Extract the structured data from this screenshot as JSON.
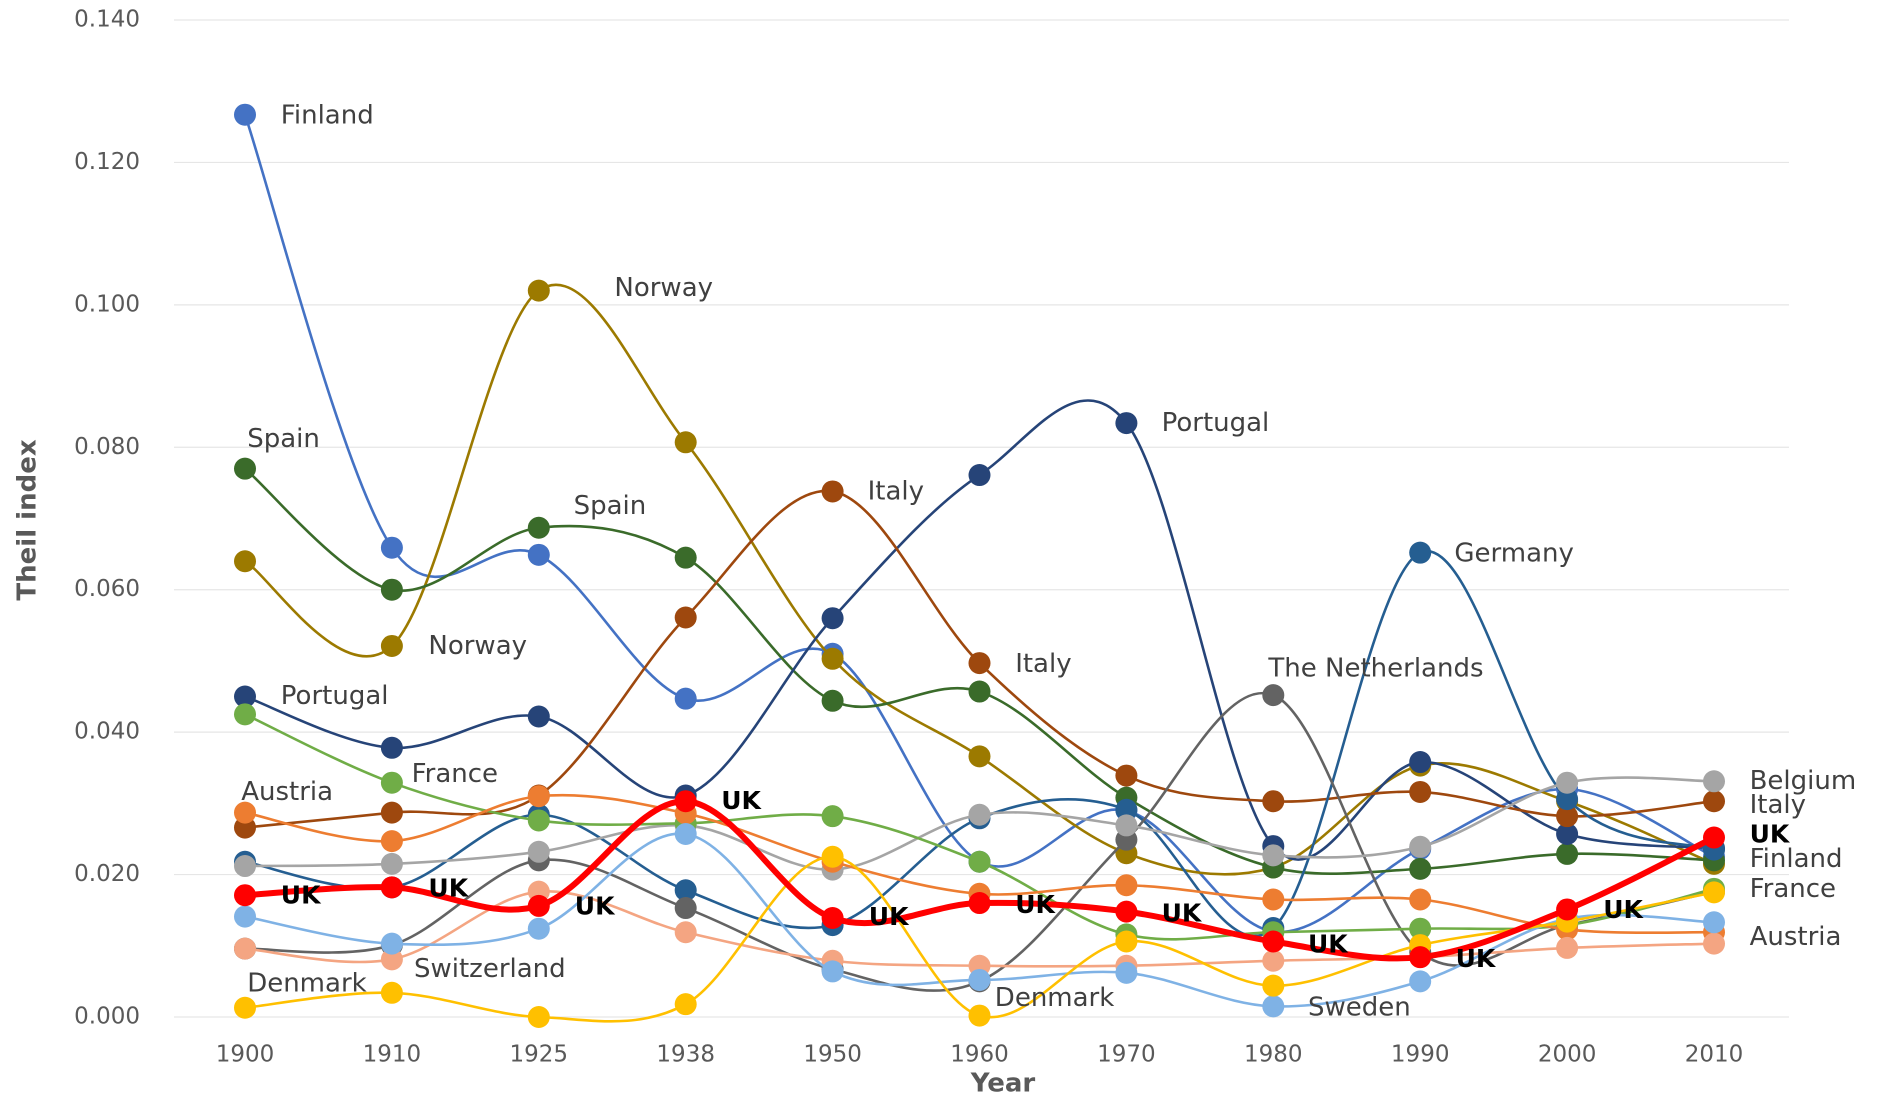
{
  "chart_data": {
    "type": "line",
    "x_label": "Year",
    "y_label": "Theil index",
    "categories": [
      "1900",
      "1910",
      "1925",
      "1938",
      "1950",
      "1960",
      "1970",
      "1980",
      "1990",
      "2000",
      "2010"
    ],
    "ylim": [
      0,
      0.14
    ],
    "yticks": [
      {
        "value": 0,
        "label": "0.000"
      },
      {
        "value": 0.02,
        "label": "0.020"
      },
      {
        "value": 0.04,
        "label": "0.040"
      },
      {
        "value": 0.06,
        "label": "0.060"
      },
      {
        "value": 0.08,
        "label": "0.080"
      },
      {
        "value": 0.1,
        "label": "0.100"
      },
      {
        "value": 0.12,
        "label": "0.120"
      },
      {
        "value": 0.14,
        "label": "0.140"
      }
    ],
    "grid": true,
    "series": [
      {
        "name": "Finland",
        "color": "#4472c4",
        "values": [
          0.1267,
          0.0659,
          0.0649,
          0.0447,
          0.051,
          0.0218,
          0.029,
          0.012,
          0.0236,
          0.032,
          0.0225
        ]
      },
      {
        "name": "Norway",
        "color": "#9c7a00",
        "values": [
          0.064,
          0.0521,
          0.102,
          0.0807,
          0.0503,
          0.0366,
          0.023,
          0.021,
          0.0353,
          0.0303,
          0.0215
        ]
      },
      {
        "name": "Spain",
        "color": "#3a6b2a",
        "values": [
          0.077,
          0.06,
          0.0687,
          0.0645,
          0.0444,
          0.0457,
          0.0308,
          0.021,
          0.0208,
          0.0229,
          0.022
        ]
      },
      {
        "name": "Portugal",
        "color": "#264478",
        "values": [
          0.045,
          0.0378,
          0.0422,
          0.0311,
          0.056,
          0.0761,
          0.0834,
          0.024,
          0.0358,
          0.0257,
          0.0237
        ]
      },
      {
        "name": "Italy",
        "color": "#9e480e",
        "values": [
          0.0266,
          0.0287,
          0.0311,
          0.0561,
          0.0738,
          0.0497,
          0.0339,
          0.0303,
          0.0316,
          0.0282,
          0.0303
        ]
      },
      {
        "name": "Germany",
        "color": "#255e91",
        "values": [
          0.0218,
          0.0182,
          0.0284,
          0.0178,
          0.0129,
          0.0279,
          0.0291,
          0.0125,
          0.0652,
          0.0306,
          0.0235
        ]
      },
      {
        "name": "The Netherlands",
        "color": "#636363",
        "values": [
          0.0096,
          0.0101,
          0.022,
          0.0153,
          0.0067,
          0.005,
          0.0249,
          0.0452,
          0.0091,
          0.0129,
          0.0176
        ]
      },
      {
        "name": "Belgium",
        "color": "#a5a5a5",
        "values": [
          0.0212,
          0.0215,
          0.0232,
          0.0269,
          0.0207,
          0.0284,
          0.0269,
          0.0227,
          0.0239,
          0.0329,
          0.0331
        ]
      },
      {
        "name": "France",
        "color": "#70ad47",
        "values": [
          0.0425,
          0.0329,
          0.0276,
          0.0272,
          0.0282,
          0.0218,
          0.0116,
          0.0119,
          0.0124,
          0.0129,
          0.018
        ]
      },
      {
        "name": "Austria",
        "color": "#ed7d31",
        "values": [
          0.0287,
          0.0247,
          0.031,
          0.0286,
          0.0218,
          0.0173,
          0.0185,
          0.0165,
          0.0165,
          0.0123,
          0.0119
        ]
      },
      {
        "name": "Switzerland",
        "color": "#f4a582",
        "values": [
          0.0096,
          0.0081,
          0.0176,
          0.0119,
          0.0079,
          0.0072,
          0.0072,
          0.0079,
          0.0084,
          0.0097,
          0.0103
        ]
      },
      {
        "name": "Sweden",
        "color": "#7fb2e5",
        "values": [
          0.0141,
          0.0103,
          0.0124,
          0.0257,
          0.0064,
          0.0052,
          0.0062,
          0.0015,
          0.005,
          0.0138,
          0.0133
        ]
      },
      {
        "name": "Denmark",
        "color": "#ffc000",
        "values": [
          0.0013,
          0.0034,
          0.0,
          0.0018,
          0.0225,
          0.0002,
          0.0106,
          0.0044,
          0.0101,
          0.0134,
          0.0175
        ]
      },
      {
        "name": "UK",
        "color": "#ff0000",
        "values": [
          0.0171,
          0.0182,
          0.0156,
          0.0303,
          0.0139,
          0.016,
          0.0148,
          0.0106,
          0.0084,
          0.0151,
          0.0252
        ]
      }
    ],
    "annotations": [
      "Finland",
      "Norway",
      "Spain",
      "Spain",
      "Norway",
      "Portugal",
      "Italy",
      "Portugal",
      "Germany",
      "Italy",
      "The Netherlands",
      "France",
      "Austria",
      "Belgium",
      "Italy",
      "Finland",
      "France",
      "Austria",
      "Switzerland",
      "Denmark",
      "Denmark",
      "Sweden",
      "UK",
      "UK",
      "UK",
      "UK",
      "UK",
      "UK",
      "UK",
      "UK",
      "UK",
      "UK",
      "UK"
    ]
  }
}
